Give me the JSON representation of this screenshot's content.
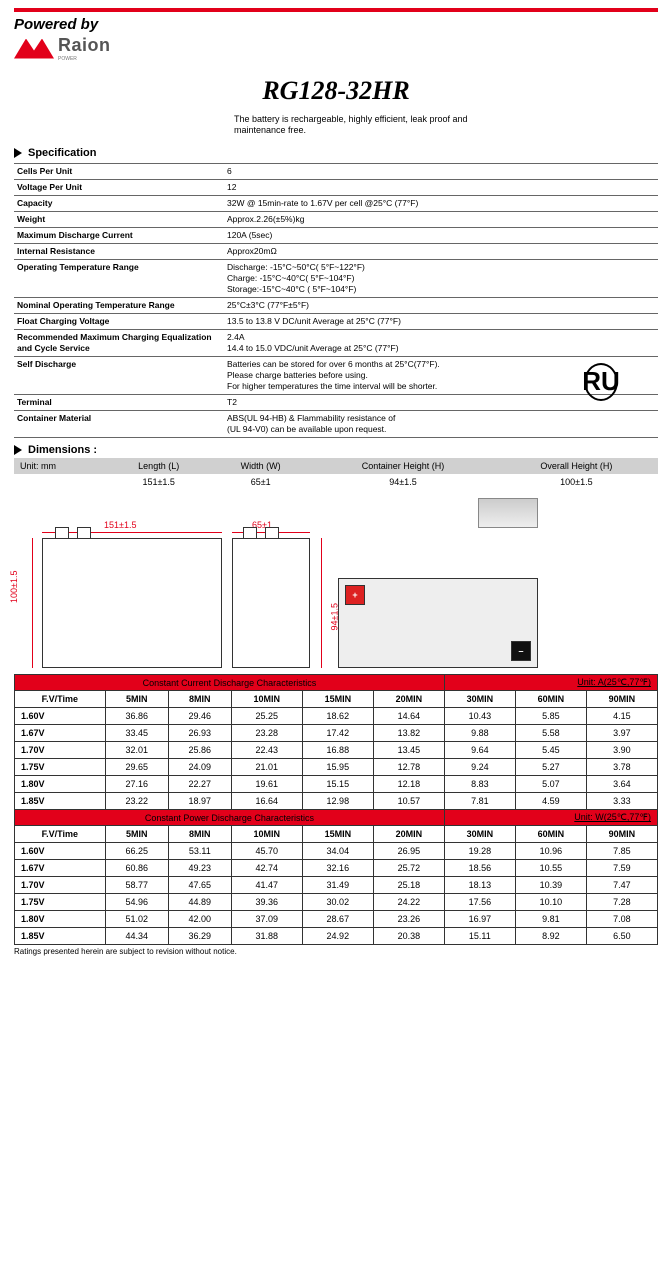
{
  "header": {
    "powered_by": "Powered by",
    "logo_text": "Raion",
    "logo_sub": "POWER",
    "product_title": "RG128-32HR",
    "subtitle": "The battery is rechargeable, highly efficient, leak proof and maintenance free.",
    "cert_mark": "RU"
  },
  "specification": {
    "heading": "Specification",
    "rows": [
      {
        "k": "Cells Per Unit",
        "v": "6"
      },
      {
        "k": "Voltage Per Unit",
        "v": "12"
      },
      {
        "k": "Capacity",
        "v": "32W @ 15min-rate to 1.67V per cell @25°C (77°F)"
      },
      {
        "k": "Weight",
        "v": "Approx.2.26(±5%)kg"
      },
      {
        "k": "Maximum Discharge Current",
        "v": "120A (5sec)"
      },
      {
        "k": "Internal Resistance",
        "v": "Approx20mΩ"
      },
      {
        "k": "Operating Temperature Range",
        "v": "Discharge: -15°C~50°C( 5°F~122°F)\nCharge: -15°C~40°C( 5°F~104°F)\nStorage:-15°C~40°C ( 5°F~104°F)"
      },
      {
        "k": "Nominal Operating Temperature Range",
        "v": "25°C±3°C (77°F±5°F)"
      },
      {
        "k": "Float Charging Voltage",
        "v": "13.5 to 13.8 V DC/unit Average at 25°C (77°F)"
      },
      {
        "k": "Recommended Maximum Charging Equalization and Cycle Service",
        "v": "2.4A\n14.4 to 15.0 VDC/unit Average at 25°C (77°F)"
      },
      {
        "k": "Self Discharge",
        "v": "Batteries can be stored for over 6 months at 25°C(77°F).\nPlease charge batteries before using.\nFor higher temperatures the time interval will be shorter."
      },
      {
        "k": "Terminal",
        "v": "T2"
      },
      {
        "k": "Container Material",
        "v": "ABS(UL 94-HB) & Flammability resistance of\n(UL 94-V0) can be available upon request."
      }
    ]
  },
  "dimensions": {
    "heading": "Dimensions :",
    "unit_label": "Unit: mm",
    "columns": [
      "Length (L)",
      "Width (W)",
      "Container Height (H)",
      "Overall Height (H)"
    ],
    "values": [
      "151±1.5",
      "65±1",
      "94±1.5",
      "100±1.5"
    ],
    "diagram": {
      "length": "151±1.5",
      "width": "65±1",
      "height": "94±1.5",
      "overall": "100±1.5",
      "plus": "+",
      "minus": "–"
    }
  },
  "table_current": {
    "title": "Constant Current Discharge Characteristics",
    "unit": "Unit: A(25℃,77℉)",
    "col_head": "F.V/Time",
    "columns": [
      "5MIN",
      "8MIN",
      "10MIN",
      "15MIN",
      "20MIN",
      "30MIN",
      "60MIN",
      "90MIN"
    ],
    "rows": [
      {
        "k": "1.60V",
        "v": [
          "36.86",
          "29.46",
          "25.25",
          "18.62",
          "14.64",
          "10.43",
          "5.85",
          "4.15"
        ]
      },
      {
        "k": "1.67V",
        "v": [
          "33.45",
          "26.93",
          "23.28",
          "17.42",
          "13.82",
          "9.88",
          "5.58",
          "3.97"
        ]
      },
      {
        "k": "1.70V",
        "v": [
          "32.01",
          "25.86",
          "22.43",
          "16.88",
          "13.45",
          "9.64",
          "5.45",
          "3.90"
        ]
      },
      {
        "k": "1.75V",
        "v": [
          "29.65",
          "24.09",
          "21.01",
          "15.95",
          "12.78",
          "9.24",
          "5.27",
          "3.78"
        ]
      },
      {
        "k": "1.80V",
        "v": [
          "27.16",
          "22.27",
          "19.61",
          "15.15",
          "12.18",
          "8.83",
          "5.07",
          "3.64"
        ]
      },
      {
        "k": "1.85V",
        "v": [
          "23.22",
          "18.97",
          "16.64",
          "12.98",
          "10.57",
          "7.81",
          "4.59",
          "3.33"
        ]
      }
    ]
  },
  "table_power": {
    "title": "Constant Power Discharge Characteristics",
    "unit": "Unit: W(25℃,77℉)",
    "col_head": "F.V/Time",
    "columns": [
      "5MIN",
      "8MIN",
      "10MIN",
      "15MIN",
      "20MIN",
      "30MIN",
      "60MIN",
      "90MIN"
    ],
    "rows": [
      {
        "k": "1.60V",
        "v": [
          "66.25",
          "53.11",
          "45.70",
          "34.04",
          "26.95",
          "19.28",
          "10.96",
          "7.85"
        ]
      },
      {
        "k": "1.67V",
        "v": [
          "60.86",
          "49.23",
          "42.74",
          "32.16",
          "25.72",
          "18.56",
          "10.55",
          "7.59"
        ]
      },
      {
        "k": "1.70V",
        "v": [
          "58.77",
          "47.65",
          "41.47",
          "31.49",
          "25.18",
          "18.13",
          "10.39",
          "7.47"
        ]
      },
      {
        "k": "1.75V",
        "v": [
          "54.96",
          "44.89",
          "39.36",
          "30.02",
          "24.22",
          "17.56",
          "10.10",
          "7.28"
        ]
      },
      {
        "k": "1.80V",
        "v": [
          "51.02",
          "42.00",
          "37.09",
          "28.67",
          "23.26",
          "16.97",
          "9.81",
          "7.08"
        ]
      },
      {
        "k": "1.85V",
        "v": [
          "44.34",
          "36.29",
          "31.88",
          "24.92",
          "20.38",
          "15.11",
          "8.92",
          "6.50"
        ]
      }
    ]
  },
  "footnote": "Ratings presented herein are subject to revision without notice."
}
